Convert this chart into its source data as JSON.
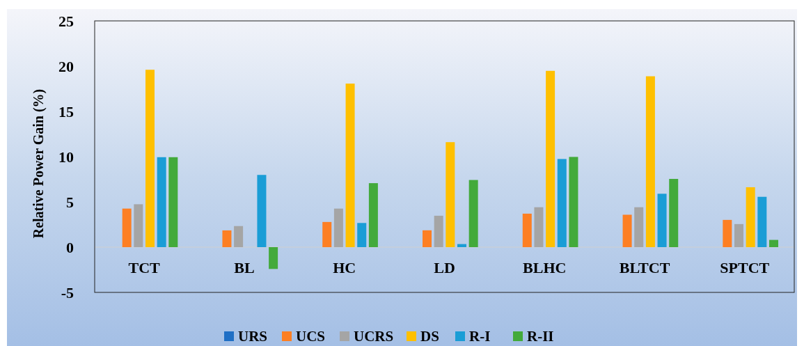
{
  "chart_data": {
    "type": "bar",
    "ylabel": "Relative Power Gain (%)",
    "categories": [
      "TCT",
      "BL",
      "HC",
      "LD",
      "BLHC",
      "BLTCT",
      "SPTCT"
    ],
    "series": [
      {
        "name": "URS",
        "color": "#1f6fc5",
        "values": [
          0,
          0,
          0,
          0,
          0,
          0,
          0
        ]
      },
      {
        "name": "UCS",
        "color": "#fd7f23",
        "values": [
          4.26,
          1.85,
          2.78,
          1.86,
          3.7,
          3.58,
          3.01
        ]
      },
      {
        "name": "UCRS",
        "color": "#a5a5a5",
        "values": [
          4.74,
          2.33,
          4.26,
          3.47,
          4.41,
          4.41,
          2.55
        ]
      },
      {
        "name": "DS",
        "color": "#ffc000",
        "values": [
          19.6,
          0,
          18.07,
          11.6,
          19.48,
          18.88,
          6.62
        ]
      },
      {
        "name": "R-I",
        "color": "#1a9dd6",
        "values": [
          9.94,
          7.98,
          2.67,
          0.34,
          9.74,
          5.9,
          5.56
        ]
      },
      {
        "name": "R-II",
        "color": "#43aa3b",
        "values": [
          9.94,
          -2.41,
          7.07,
          7.42,
          9.97,
          7.54,
          0.8
        ]
      }
    ],
    "ylim": [
      -5,
      25
    ],
    "yticks": [
      -5,
      0,
      5,
      10,
      15,
      20,
      25
    ],
    "grid": false,
    "legend": "bottom"
  }
}
